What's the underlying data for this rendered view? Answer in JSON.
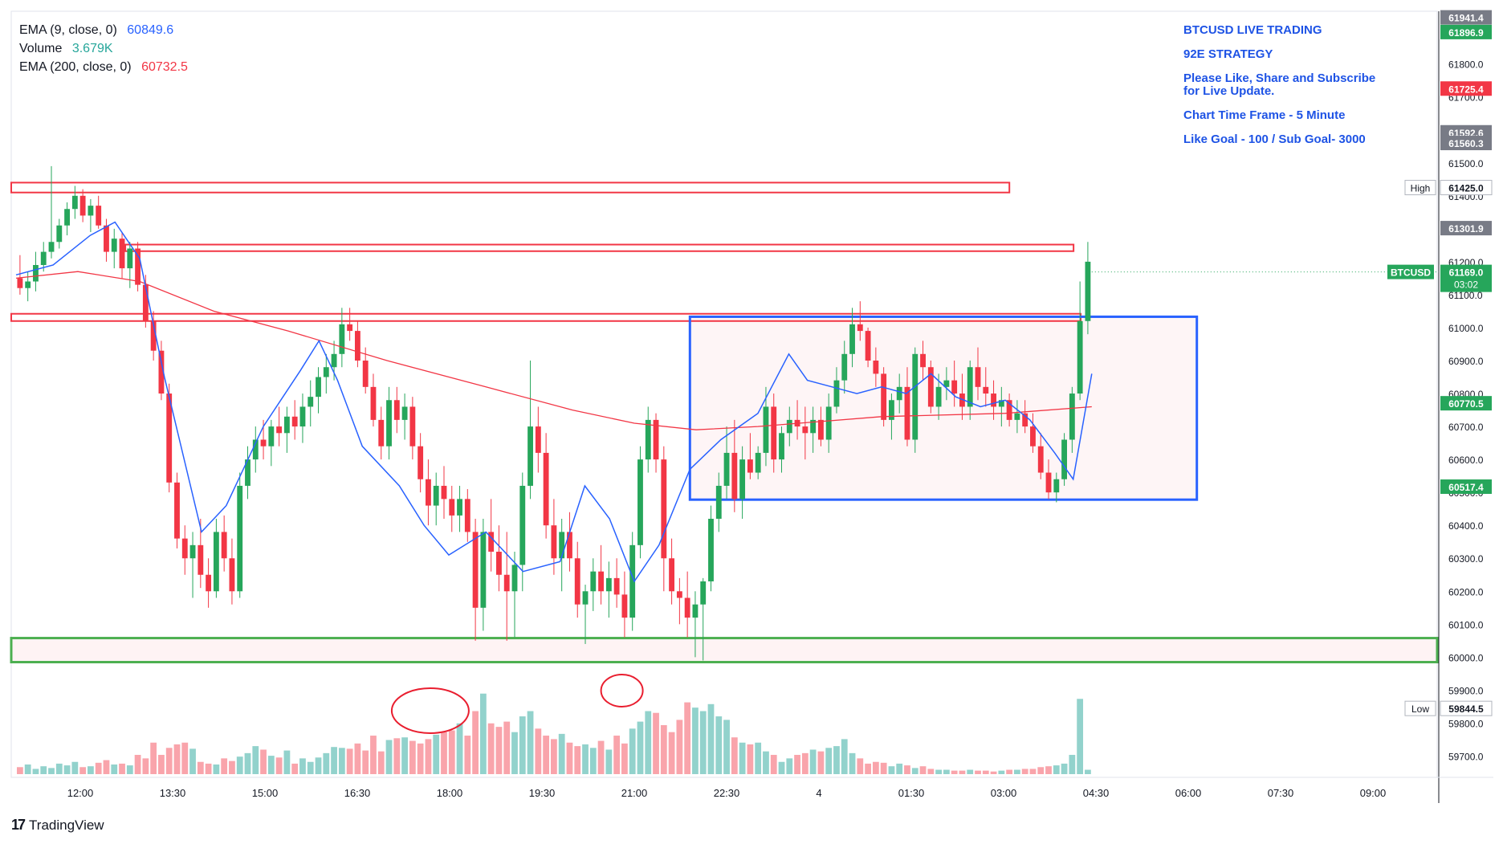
{
  "legend": {
    "ema9": {
      "label": "EMA (9, close, 0)",
      "value": "60849.6",
      "color": "#2962ff"
    },
    "volume": {
      "label": "Volume",
      "value": "3.679K",
      "color": "#26a69a"
    },
    "ema200": {
      "label": "EMA (200, close, 0)",
      "value": "60732.5",
      "color": "#f23645"
    }
  },
  "annotation": {
    "line1": "BTCUSD LIVE TRADING",
    "line2": "92E  STRATEGY",
    "line3": "Please Like, Share and Subscribe\nfor Live Update.",
    "line4": "Chart Time Frame - 5 Minute",
    "line5": "Like Goal - 100 / Sub Goal- 3000"
  },
  "brand": {
    "name": "TradingView"
  },
  "chart_data": {
    "type": "candlestick",
    "symbol": "BTCUSD",
    "timeframe": "5 Minute",
    "y_range": [
      59650,
      61960
    ],
    "y_ticks": [
      "61800.0",
      "61700.0",
      "61600.0",
      "61500.0",
      "61400.0",
      "61300.0",
      "61200.0",
      "61100.0",
      "61000.0",
      "60900.0",
      "60800.0",
      "60700.0",
      "60600.0",
      "60500.0",
      "60400.0",
      "60300.0",
      "60200.0",
      "60100.0",
      "60000.0",
      "59900.0",
      "59800.0",
      "59700.0"
    ],
    "x_ticks": [
      "12:00",
      "13:30",
      "15:00",
      "16:30",
      "18:00",
      "19:30",
      "21:00",
      "22:30",
      "4",
      "01:30",
      "03:00",
      "04:30",
      "06:00",
      "07:30",
      "09:00"
    ],
    "price_labels": [
      {
        "text": "61941.4",
        "value": 61941.4,
        "color": "#787b86"
      },
      {
        "text": "61896.9",
        "value": 61896.9,
        "color": "#26a65b"
      },
      {
        "text": "61725.4",
        "value": 61725.4,
        "color": "#f23645"
      },
      {
        "text": "61592.6",
        "value": 61592.6,
        "color": "#787b86"
      },
      {
        "text": "61560.3",
        "value": 61560.3,
        "color": "#787b86"
      },
      {
        "text": "61425.0",
        "value": 61425.0,
        "color": "#ffffff",
        "tag": "High"
      },
      {
        "text": "61301.9",
        "value": 61301.9,
        "color": "#787b86"
      },
      {
        "text": "60770.5",
        "value": 60770.5,
        "color": "#26a65b"
      },
      {
        "text": "60517.4",
        "value": 60517.4,
        "color": "#26a65b"
      },
      {
        "text": "59844.5",
        "value": 59844.5,
        "color": "#ffffff",
        "tag": "Low"
      }
    ],
    "current_price": {
      "symbol": "BTCUSD",
      "price": "61169.0",
      "countdown": "03:02",
      "value": 61169.0
    },
    "horizontal_zones": [
      {
        "y1": 61410,
        "y2": 61440,
        "x_end": 0.7,
        "color": "#f23645"
      },
      {
        "y1": 61232,
        "y2": 61252,
        "x_end": 0.745,
        "color": "#f23645",
        "x_start": 0.08
      },
      {
        "y1": 61020,
        "y2": 61042,
        "x_end": 0.75,
        "color": "#f23645"
      },
      {
        "y1": 59985,
        "y2": 60058,
        "x_end": 1.0,
        "color": "#4caf50"
      }
    ],
    "rectangle": {
      "t_start": 0.545,
      "t_end": 0.955,
      "y1": 61033,
      "y2": 60478,
      "color": "#2962ff"
    },
    "candles": [
      [
        61150,
        61220,
        61100,
        61120
      ],
      [
        61120,
        61170,
        61080,
        61140
      ],
      [
        61140,
        61230,
        61110,
        61190
      ],
      [
        61190,
        61260,
        61170,
        61230
      ],
      [
        61230,
        61490,
        61210,
        61260
      ],
      [
        61260,
        61330,
        61240,
        61310
      ],
      [
        61310,
        61380,
        61280,
        61360
      ],
      [
        61360,
        61430,
        61330,
        61400
      ],
      [
        61400,
        61420,
        61320,
        61340
      ],
      [
        61340,
        61390,
        61290,
        61370
      ],
      [
        61370,
        61400,
        61300,
        61310
      ],
      [
        61310,
        61330,
        61200,
        61230
      ],
      [
        61230,
        61300,
        61180,
        61270
      ],
      [
        61270,
        61290,
        61150,
        61180
      ],
      [
        61180,
        61260,
        61120,
        61240
      ],
      [
        61240,
        61260,
        61110,
        61130
      ],
      [
        61130,
        61160,
        61000,
        61020
      ],
      [
        61020,
        61050,
        60900,
        60930
      ],
      [
        60930,
        60960,
        60780,
        60800
      ],
      [
        60800,
        60830,
        60500,
        60530
      ],
      [
        60530,
        60560,
        60330,
        60360
      ],
      [
        60360,
        60400,
        60250,
        60300
      ],
      [
        60300,
        60380,
        60180,
        60340
      ],
      [
        60340,
        60420,
        60210,
        60250
      ],
      [
        60250,
        60300,
        60150,
        60200
      ],
      [
        60200,
        60420,
        60180,
        60380
      ],
      [
        60380,
        60430,
        60260,
        60300
      ],
      [
        60300,
        60360,
        60160,
        60200
      ],
      [
        60200,
        60560,
        60180,
        60520
      ],
      [
        60520,
        60640,
        60480,
        60600
      ],
      [
        60600,
        60700,
        60560,
        60660
      ],
      [
        60660,
        60720,
        60600,
        60640
      ],
      [
        60640,
        60720,
        60580,
        60700
      ],
      [
        60700,
        60760,
        60640,
        60680
      ],
      [
        60680,
        60760,
        60620,
        60730
      ],
      [
        60730,
        60780,
        60660,
        60700
      ],
      [
        60700,
        60800,
        60650,
        60760
      ],
      [
        60760,
        60840,
        60700,
        60790
      ],
      [
        60790,
        60880,
        60740,
        60850
      ],
      [
        60850,
        60920,
        60800,
        60880
      ],
      [
        60880,
        60960,
        60840,
        60920
      ],
      [
        60920,
        61060,
        60880,
        61010
      ],
      [
        61010,
        61060,
        60960,
        60990
      ],
      [
        60990,
        61020,
        60880,
        60900
      ],
      [
        60900,
        60940,
        60800,
        60820
      ],
      [
        60820,
        60860,
        60700,
        60720
      ],
      [
        60720,
        60760,
        60600,
        60640
      ],
      [
        60640,
        60820,
        60600,
        60780
      ],
      [
        60780,
        60820,
        60680,
        60720
      ],
      [
        60720,
        60800,
        60660,
        60760
      ],
      [
        60760,
        60790,
        60600,
        60640
      ],
      [
        60640,
        60680,
        60500,
        60540
      ],
      [
        60540,
        60600,
        60400,
        60460
      ],
      [
        60460,
        60560,
        60400,
        60520
      ],
      [
        60520,
        60580,
        60420,
        60480
      ],
      [
        60480,
        60520,
        60380,
        60430
      ],
      [
        60430,
        60520,
        60380,
        60480
      ],
      [
        60480,
        60510,
        60350,
        60380
      ],
      [
        60380,
        60420,
        60050,
        60150
      ],
      [
        60150,
        60420,
        60080,
        60380
      ],
      [
        60380,
        60480,
        60260,
        60320
      ],
      [
        60320,
        60400,
        60200,
        60250
      ],
      [
        60250,
        60380,
        60050,
        60200
      ],
      [
        60200,
        60320,
        60060,
        60280
      ],
      [
        60280,
        60560,
        60200,
        60520
      ],
      [
        60520,
        60900,
        60480,
        60700
      ],
      [
        60700,
        60760,
        60560,
        60620
      ],
      [
        60620,
        60680,
        60360,
        60400
      ],
      [
        60400,
        60480,
        60250,
        60300
      ],
      [
        60300,
        60420,
        60200,
        60380
      ],
      [
        60380,
        60440,
        60260,
        60300
      ],
      [
        60300,
        60350,
        60120,
        60160
      ],
      [
        60160,
        60220,
        60040,
        60200
      ],
      [
        60200,
        60300,
        60140,
        60260
      ],
      [
        60260,
        60340,
        60160,
        60200
      ],
      [
        60200,
        60290,
        60120,
        60240
      ],
      [
        60240,
        60300,
        60150,
        60190
      ],
      [
        60190,
        60260,
        60060,
        60120
      ],
      [
        60120,
        60380,
        60080,
        60340
      ],
      [
        60340,
        60640,
        60300,
        60600
      ],
      [
        60600,
        60760,
        60560,
        60720
      ],
      [
        60720,
        60740,
        60560,
        60600
      ],
      [
        60600,
        60640,
        60200,
        60300
      ],
      [
        60300,
        60360,
        60160,
        60200
      ],
      [
        60200,
        60240,
        60100,
        60180
      ],
      [
        60180,
        60260,
        60060,
        60120
      ],
      [
        60120,
        60200,
        60000,
        60160
      ],
      [
        60160,
        60240,
        59990,
        60230
      ],
      [
        60230,
        60460,
        60200,
        60420
      ],
      [
        60420,
        60560,
        60380,
        60520
      ],
      [
        60520,
        60700,
        60480,
        60620
      ],
      [
        60620,
        60720,
        60440,
        60480
      ],
      [
        60480,
        60640,
        60420,
        60600
      ],
      [
        60600,
        60680,
        60540,
        60560
      ],
      [
        60560,
        60640,
        60540,
        60620
      ],
      [
        60620,
        60820,
        60580,
        60760
      ],
      [
        60760,
        60800,
        60560,
        60600
      ],
      [
        60600,
        60700,
        60560,
        60680
      ],
      [
        60680,
        60760,
        60640,
        60720
      ],
      [
        60720,
        60780,
        60660,
        60700
      ],
      [
        60700,
        60760,
        60600,
        60680
      ],
      [
        60680,
        60760,
        60620,
        60720
      ],
      [
        60720,
        60760,
        60640,
        60660
      ],
      [
        60660,
        60800,
        60620,
        60760
      ],
      [
        60760,
        60880,
        60740,
        60840
      ],
      [
        60840,
        60960,
        60800,
        60920
      ],
      [
        60920,
        61060,
        60880,
        61010
      ],
      [
        61010,
        61080,
        60960,
        60990
      ],
      [
        60990,
        61000,
        60880,
        60900
      ],
      [
        60900,
        60940,
        60820,
        60860
      ],
      [
        60860,
        60880,
        60700,
        60720
      ],
      [
        60720,
        60800,
        60660,
        60780
      ],
      [
        60780,
        60860,
        60740,
        60820
      ],
      [
        60820,
        60880,
        60640,
        60660
      ],
      [
        60660,
        60940,
        60620,
        60920
      ],
      [
        60920,
        60960,
        60840,
        60880
      ],
      [
        60880,
        60900,
        60740,
        60760
      ],
      [
        60760,
        60860,
        60720,
        60820
      ],
      [
        60820,
        60880,
        60780,
        60840
      ],
      [
        60840,
        60900,
        60760,
        60800
      ],
      [
        60800,
        60860,
        60720,
        60760
      ],
      [
        60760,
        60900,
        60720,
        60880
      ],
      [
        60880,
        60940,
        60780,
        60820
      ],
      [
        60820,
        60880,
        60760,
        60800
      ],
      [
        60800,
        60840,
        60720,
        60760
      ],
      [
        60760,
        60820,
        60700,
        60780
      ],
      [
        60780,
        60800,
        60700,
        60720
      ],
      [
        60720,
        60780,
        60680,
        60740
      ],
      [
        60740,
        60780,
        60680,
        60700
      ],
      [
        60700,
        60740,
        60620,
        60640
      ],
      [
        60640,
        60680,
        60540,
        60560
      ],
      [
        60560,
        60600,
        60480,
        60500
      ],
      [
        60500,
        60560,
        60470,
        60540
      ],
      [
        60540,
        60680,
        60520,
        60660
      ],
      [
        60660,
        60820,
        60620,
        60800
      ],
      [
        60800,
        61140,
        60780,
        61020
      ],
      [
        61020,
        61260,
        60980,
        61200
      ]
    ],
    "ema9": [
      [
        0,
        61160
      ],
      [
        0.03,
        61190
      ],
      [
        0.06,
        61280
      ],
      [
        0.08,
        61320
      ],
      [
        0.1,
        61210
      ],
      [
        0.12,
        60850
      ],
      [
        0.15,
        60380
      ],
      [
        0.17,
        60460
      ],
      [
        0.2,
        60700
      ],
      [
        0.23,
        60870
      ],
      [
        0.245,
        60960
      ],
      [
        0.26,
        60840
      ],
      [
        0.28,
        60640
      ],
      [
        0.31,
        60520
      ],
      [
        0.33,
        60400
      ],
      [
        0.35,
        60310
      ],
      [
        0.38,
        60380
      ],
      [
        0.41,
        60260
      ],
      [
        0.44,
        60290
      ],
      [
        0.46,
        60520
      ],
      [
        0.48,
        60420
      ],
      [
        0.5,
        60230
      ],
      [
        0.52,
        60340
      ],
      [
        0.545,
        60570
      ],
      [
        0.57,
        60660
      ],
      [
        0.6,
        60740
      ],
      [
        0.625,
        60920
      ],
      [
        0.64,
        60840
      ],
      [
        0.66,
        60820
      ],
      [
        0.68,
        60800
      ],
      [
        0.7,
        60820
      ],
      [
        0.72,
        60800
      ],
      [
        0.74,
        60860
      ],
      [
        0.76,
        60790
      ],
      [
        0.78,
        60760
      ],
      [
        0.8,
        60780
      ],
      [
        0.82,
        60720
      ],
      [
        0.84,
        60620
      ],
      [
        0.855,
        60540
      ],
      [
        0.87,
        60860
      ]
    ],
    "ema200": [
      [
        0,
        61150
      ],
      [
        0.05,
        61170
      ],
      [
        0.1,
        61140
      ],
      [
        0.16,
        61050
      ],
      [
        0.22,
        60990
      ],
      [
        0.3,
        60900
      ],
      [
        0.38,
        60820
      ],
      [
        0.45,
        60750
      ],
      [
        0.5,
        60710
      ],
      [
        0.55,
        60690
      ],
      [
        0.6,
        60700
      ],
      [
        0.7,
        60730
      ],
      [
        0.8,
        60740
      ],
      [
        0.87,
        60760
      ]
    ],
    "volume_bars": [
      0.08,
      0.11,
      0.06,
      0.09,
      0.07,
      0.12,
      0.1,
      0.14,
      0.08,
      0.09,
      0.13,
      0.16,
      0.11,
      0.12,
      0.1,
      0.22,
      0.18,
      0.36,
      0.22,
      0.3,
      0.34,
      0.36,
      0.29,
      0.14,
      0.12,
      0.11,
      0.18,
      0.15,
      0.2,
      0.24,
      0.32,
      0.28,
      0.21,
      0.19,
      0.27,
      0.12,
      0.18,
      0.14,
      0.19,
      0.24,
      0.31,
      0.3,
      0.29,
      0.35,
      0.27,
      0.44,
      0.26,
      0.39,
      0.41,
      0.42,
      0.38,
      0.35,
      0.4,
      0.45,
      0.48,
      0.5,
      0.58,
      0.44,
      0.72,
      0.92,
      0.58,
      0.54,
      0.6,
      0.48,
      0.66,
      0.72,
      0.52,
      0.44,
      0.4,
      0.46,
      0.36,
      0.32,
      0.34,
      0.3,
      0.38,
      0.28,
      0.44,
      0.35,
      0.52,
      0.6,
      0.72,
      0.7,
      0.56,
      0.48,
      0.62,
      0.82,
      0.76,
      0.72,
      0.8,
      0.66,
      0.62,
      0.42,
      0.36,
      0.34,
      0.36,
      0.26,
      0.22,
      0.14,
      0.18,
      0.22,
      0.24,
      0.28,
      0.26,
      0.3,
      0.32,
      0.4,
      0.24,
      0.18,
      0.12,
      0.14,
      0.13,
      0.09,
      0.12,
      0.1,
      0.07,
      0.09,
      0.06,
      0.05,
      0.05,
      0.04,
      0.04,
      0.05,
      0.04,
      0.04,
      0.03,
      0.04,
      0.05,
      0.05,
      0.06,
      0.06,
      0.08,
      0.09,
      0.1,
      0.12,
      0.22,
      0.86
    ]
  }
}
